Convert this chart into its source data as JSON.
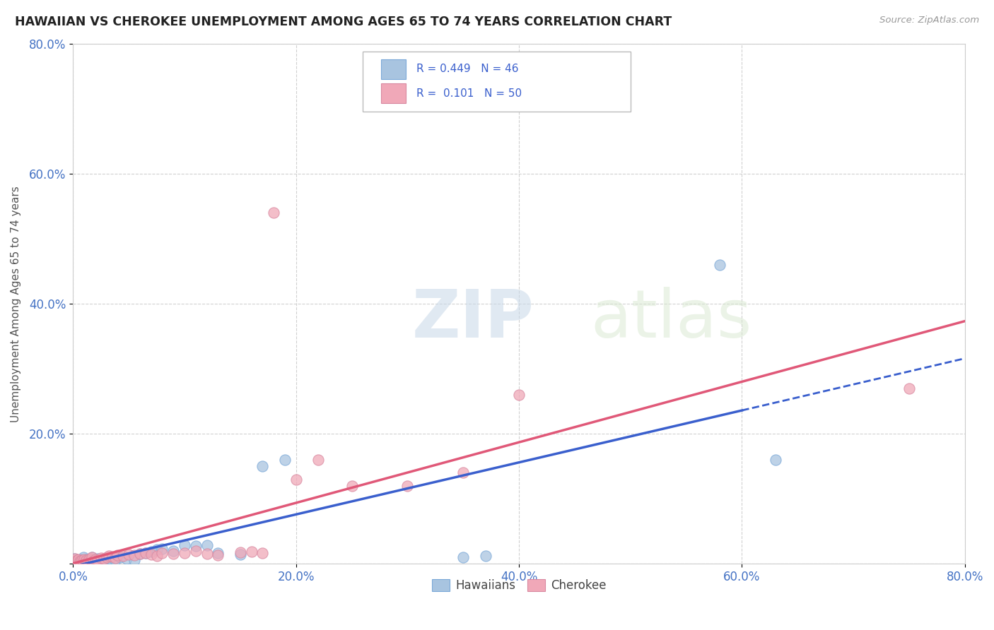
{
  "title": "HAWAIIAN VS CHEROKEE UNEMPLOYMENT AMONG AGES 65 TO 74 YEARS CORRELATION CHART",
  "source": "Source: ZipAtlas.com",
  "ylabel": "Unemployment Among Ages 65 to 74 years",
  "xlim": [
    0,
    0.8
  ],
  "ylim": [
    0,
    0.8
  ],
  "xticks": [
    0.0,
    0.2,
    0.4,
    0.6,
    0.8
  ],
  "yticks": [
    0.0,
    0.2,
    0.4,
    0.6,
    0.8
  ],
  "xticklabels": [
    "0.0%",
    "20.0%",
    "40.0%",
    "60.0%",
    "80.0%"
  ],
  "yticklabels": [
    "",
    "20.0%",
    "40.0%",
    "60.0%",
    "80.0%"
  ],
  "hawaiian_color": "#a8c4e0",
  "cherokee_color": "#f0a8b8",
  "hawaiian_line_color": "#3a5fcd",
  "cherokee_line_color": "#e05878",
  "R_hawaiian": 0.449,
  "N_hawaiian": 46,
  "R_cherokee": 0.101,
  "N_cherokee": 50,
  "watermark_zip": "ZIP",
  "watermark_atlas": "atlas",
  "background_color": "#ffffff",
  "hawaiian_x": [
    0.001,
    0.002,
    0.003,
    0.004,
    0.005,
    0.006,
    0.007,
    0.008,
    0.009,
    0.01,
    0.01,
    0.011,
    0.012,
    0.013,
    0.014,
    0.015,
    0.016,
    0.017,
    0.018,
    0.02,
    0.022,
    0.025,
    0.027,
    0.03,
    0.033,
    0.038,
    0.042,
    0.048,
    0.055,
    0.06,
    0.065,
    0.07,
    0.075,
    0.08,
    0.09,
    0.1,
    0.11,
    0.12,
    0.13,
    0.15,
    0.17,
    0.19,
    0.35,
    0.37,
    0.58,
    0.63
  ],
  "hawaiian_y": [
    0.008,
    0.005,
    0.003,
    0.006,
    0.005,
    0.004,
    0.007,
    0.004,
    0.01,
    0.003,
    0.005,
    0.007,
    0.005,
    0.003,
    0.006,
    0.005,
    0.006,
    0.01,
    0.004,
    0.006,
    0.008,
    0.006,
    0.004,
    0.005,
    0.008,
    0.006,
    0.01,
    0.008,
    0.006,
    0.015,
    0.016,
    0.019,
    0.022,
    0.023,
    0.02,
    0.028,
    0.027,
    0.028,
    0.016,
    0.014,
    0.15,
    0.16,
    0.01,
    0.012,
    0.46,
    0.16
  ],
  "cherokee_x": [
    0.001,
    0.002,
    0.003,
    0.004,
    0.005,
    0.006,
    0.007,
    0.008,
    0.009,
    0.01,
    0.011,
    0.012,
    0.013,
    0.015,
    0.016,
    0.017,
    0.018,
    0.02,
    0.022,
    0.025,
    0.028,
    0.03,
    0.032,
    0.035,
    0.038,
    0.04,
    0.045,
    0.05,
    0.055,
    0.06,
    0.065,
    0.07,
    0.075,
    0.08,
    0.09,
    0.1,
    0.11,
    0.12,
    0.13,
    0.15,
    0.16,
    0.17,
    0.18,
    0.2,
    0.22,
    0.25,
    0.3,
    0.35,
    0.4,
    0.75
  ],
  "cherokee_y": [
    0.005,
    0.008,
    0.004,
    0.006,
    0.007,
    0.005,
    0.003,
    0.006,
    0.004,
    0.007,
    0.005,
    0.006,
    0.004,
    0.008,
    0.006,
    0.01,
    0.005,
    0.007,
    0.006,
    0.009,
    0.008,
    0.01,
    0.012,
    0.011,
    0.009,
    0.013,
    0.012,
    0.014,
    0.013,
    0.015,
    0.016,
    0.014,
    0.012,
    0.016,
    0.015,
    0.017,
    0.02,
    0.015,
    0.013,
    0.018,
    0.019,
    0.016,
    0.54,
    0.13,
    0.16,
    0.12,
    0.12,
    0.14,
    0.26,
    0.27
  ]
}
